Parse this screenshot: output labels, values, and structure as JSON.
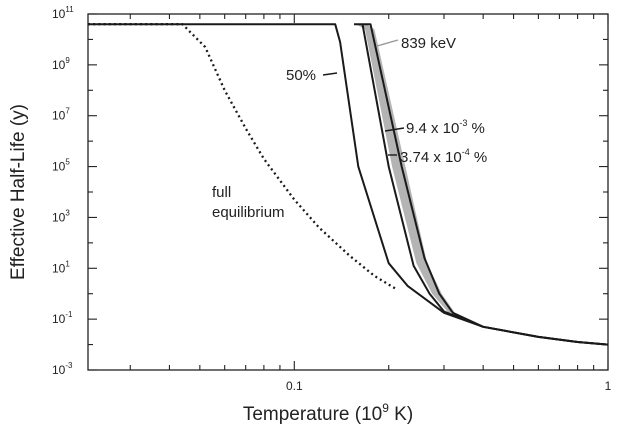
{
  "chart_data": {
    "type": "line",
    "title": "",
    "xlabel": {
      "prefix": "Temperature (10",
      "sup": "9",
      "suffix": " K)"
    },
    "ylabel": "Effective Half-Life (y)",
    "xscale": "log",
    "yscale": "log",
    "xlim": [
      0.022,
      1.0
    ],
    "ylim_log10": [
      -3,
      11
    ],
    "xticks": [
      {
        "value": 0.1,
        "label": "0.1"
      },
      {
        "value": 1,
        "label": "1"
      }
    ],
    "yticks": [
      {
        "exp": 11,
        "base": "10",
        "sup": "11"
      },
      {
        "exp": 9,
        "base": "10",
        "sup": "9"
      },
      {
        "exp": 7,
        "base": "10",
        "sup": "7"
      },
      {
        "exp": 5,
        "base": "10",
        "sup": "5"
      },
      {
        "exp": 3,
        "base": "10",
        "sup": "3"
      },
      {
        "exp": 1,
        "base": "10",
        "sup": "1"
      },
      {
        "exp": -1,
        "base": "10",
        "sup": "-1"
      },
      {
        "exp": -3,
        "base": "10",
        "sup": "-3"
      }
    ],
    "grid": false,
    "series": [
      {
        "name": "full equilibrium",
        "style": "dotted",
        "x": [
          0.022,
          0.044,
          0.052,
          0.06,
          0.07,
          0.08,
          0.1,
          0.12,
          0.15,
          0.18,
          0.21
        ],
        "logy": [
          10.6,
          10.6,
          9.7,
          8.0,
          6.5,
          5.3,
          3.7,
          2.6,
          1.5,
          0.7,
          0.2
        ]
      },
      {
        "name": "50%",
        "style": "solid",
        "x": [
          0.022,
          0.135,
          0.14,
          0.16,
          0.2,
          0.23,
          0.3,
          0.4,
          0.6,
          0.8,
          1.0
        ],
        "logy": [
          10.6,
          10.6,
          9.9,
          5.0,
          1.2,
          0.3,
          -0.75,
          -1.3,
          -1.7,
          -1.9,
          -2.0
        ]
      },
      {
        "name": "9.4 x 10-3 %",
        "style": "solid",
        "x": [
          0.155,
          0.165,
          0.2,
          0.24,
          0.27,
          0.3,
          0.4,
          0.6,
          0.8,
          1.0
        ],
        "logy": [
          10.6,
          10.6,
          5.0,
          1.1,
          0.0,
          -0.7,
          -1.3,
          -1.7,
          -1.9,
          -2.0
        ]
      },
      {
        "name": "3.74 x 10-4 %",
        "style": "solid",
        "x": [
          0.165,
          0.175,
          0.22,
          0.26,
          0.29,
          0.32,
          0.4,
          0.6,
          0.8,
          1.0
        ],
        "logy": [
          10.6,
          10.6,
          5.0,
          1.4,
          0.0,
          -0.75,
          -1.3,
          -1.7,
          -1.9,
          -2.0
        ]
      },
      {
        "name": "839 keV",
        "style": "gray-band",
        "upper_x": [
          0.157,
          0.168,
          0.205,
          0.245,
          0.275,
          0.31
        ],
        "lower_x": [
          0.17,
          0.18,
          0.226,
          0.265,
          0.295,
          0.325
        ],
        "logy": [
          10.6,
          10.4,
          5.0,
          1.2,
          0.0,
          -0.75
        ]
      }
    ],
    "annotations": [
      {
        "id": "839",
        "text": "839 keV",
        "sup": "",
        "suffix": ""
      },
      {
        "id": "50",
        "text": "50%",
        "sup": "",
        "suffix": ""
      },
      {
        "id": "94",
        "text": "9.4 x 10",
        "sup": "-3",
        "suffix": " %"
      },
      {
        "id": "374",
        "text": "3.74 x 10",
        "sup": "-4",
        "suffix": " %"
      },
      {
        "id": "full",
        "text": "full",
        "sup": "",
        "suffix": ""
      },
      {
        "id": "equil",
        "text": "equilibrium",
        "sup": "",
        "suffix": ""
      }
    ]
  }
}
